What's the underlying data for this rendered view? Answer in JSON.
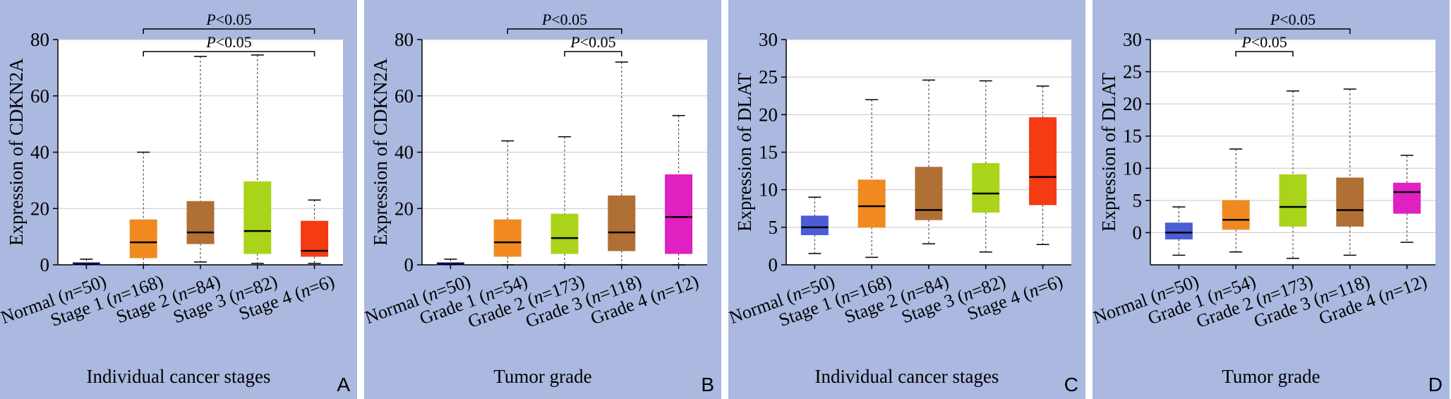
{
  "chart_data": [
    {
      "type": "boxplot",
      "panel_label": "A",
      "xlabel": "Individual cancer stages",
      "ylabel": "Expression of CDKN2A",
      "ylim": [
        0,
        80
      ],
      "yticks": [
        0,
        20,
        40,
        60,
        80
      ],
      "grid": true,
      "boxes": [
        {
          "label": "Normal (n=50)",
          "color": "#4b5cd6",
          "min": 0,
          "q1": 0,
          "median": 0.3,
          "q3": 0.8,
          "max": 2
        },
        {
          "label": "Stage 1 (n=168)",
          "color": "#f08a20",
          "min": 0,
          "q1": 2.5,
          "median": 8,
          "q3": 16,
          "max": 40
        },
        {
          "label": "Stage 2 (n=84)",
          "color": "#b06f35",
          "min": 1,
          "q1": 7.5,
          "median": 11.5,
          "q3": 22.5,
          "max": 74
        },
        {
          "label": "Stage 3 (n=82)",
          "color": "#a9d41a",
          "min": 0.5,
          "q1": 4,
          "median": 12,
          "q3": 29.5,
          "max": 74.5
        },
        {
          "label": "Stage 4 (n=6)",
          "color": "#f43b13",
          "min": 0.5,
          "q1": 3,
          "median": 5,
          "q3": 15.5,
          "max": 23
        }
      ],
      "annotations": [
        {
          "text": "P<0.05",
          "from": 1,
          "to": 4,
          "level": 2
        },
        {
          "text": "P<0.05",
          "from": 1,
          "to": 4,
          "level": 1
        }
      ]
    },
    {
      "type": "boxplot",
      "panel_label": "B",
      "xlabel": "Tumor grade",
      "ylabel": "Expression of CDKN2A",
      "ylim": [
        0,
        80
      ],
      "yticks": [
        0,
        20,
        40,
        60,
        80
      ],
      "grid": true,
      "boxes": [
        {
          "label": "Normal (n=50)",
          "color": "#4b5cd6",
          "min": 0,
          "q1": 0,
          "median": 0.3,
          "q3": 0.8,
          "max": 2
        },
        {
          "label": "Grade 1 (n=54)",
          "color": "#f08a20",
          "min": 0,
          "q1": 3,
          "median": 8,
          "q3": 16,
          "max": 44
        },
        {
          "label": "Grade 2 (n=173)",
          "color": "#a9d41a",
          "min": 0,
          "q1": 4,
          "median": 9.5,
          "q3": 18,
          "max": 45.5
        },
        {
          "label": "Grade 3 (n=118)",
          "color": "#b06f35",
          "min": 0,
          "q1": 5,
          "median": 11.5,
          "q3": 24.5,
          "max": 72
        },
        {
          "label": "Grade 4 (n=12)",
          "color": "#e020c0",
          "min": 0,
          "q1": 4,
          "median": 17,
          "q3": 32,
          "max": 53
        }
      ],
      "annotations": [
        {
          "text": "P<0.05",
          "from": 1,
          "to": 3,
          "level": 2
        },
        {
          "text": "P<0.05",
          "from": 2,
          "to": 3,
          "level": 1
        }
      ]
    },
    {
      "type": "boxplot",
      "panel_label": "C",
      "xlabel": "Individual cancer stages",
      "ylabel": "Expression of DLAT",
      "ylim": [
        0,
        30
      ],
      "yticks": [
        0,
        5,
        10,
        15,
        20,
        25,
        30
      ],
      "grid": true,
      "boxes": [
        {
          "label": "Normal (n=50)",
          "color": "#4b5cd6",
          "min": 1.5,
          "q1": 4,
          "median": 5,
          "q3": 6.5,
          "max": 9
        },
        {
          "label": "Stage 1 (n=168)",
          "color": "#f08a20",
          "min": 1,
          "q1": 5,
          "median": 7.8,
          "q3": 11.3,
          "max": 22
        },
        {
          "label": "Stage 2 (n=84)",
          "color": "#b06f35",
          "min": 2.8,
          "q1": 6,
          "median": 7.3,
          "q3": 13,
          "max": 24.6
        },
        {
          "label": "Stage 3 (n=82)",
          "color": "#a9d41a",
          "min": 1.7,
          "q1": 7,
          "median": 9.5,
          "q3": 13.5,
          "max": 24.5
        },
        {
          "label": "Stage 4 (n=6)",
          "color": "#f43b13",
          "min": 2.7,
          "q1": 8,
          "median": 11.7,
          "q3": 19.6,
          "max": 23.8
        }
      ],
      "annotations": []
    },
    {
      "type": "boxplot",
      "panel_label": "D",
      "xlabel": "Tumor grade",
      "ylabel": "Expression of DLAT",
      "ylim": [
        -5,
        30
      ],
      "yticks": [
        0,
        5,
        10,
        15,
        20,
        25,
        30
      ],
      "grid": true,
      "boxes": [
        {
          "label": "Normal (n=50)",
          "color": "#4b5cd6",
          "min": -3.5,
          "q1": -1,
          "median": 0,
          "q3": 1.5,
          "max": 4
        },
        {
          "label": "Grade 1 (n=54)",
          "color": "#f08a20",
          "min": -3,
          "q1": 0.5,
          "median": 2,
          "q3": 5,
          "max": 13
        },
        {
          "label": "Grade 2 (n=173)",
          "color": "#a9d41a",
          "min": -4,
          "q1": 1,
          "median": 4,
          "q3": 9,
          "max": 22
        },
        {
          "label": "Grade 3 (n=118)",
          "color": "#b06f35",
          "min": -3.5,
          "q1": 1,
          "median": 3.5,
          "q3": 8.5,
          "max": 22.3
        },
        {
          "label": "Grade 4 (n=12)",
          "color": "#e020c0",
          "min": -1.5,
          "q1": 3,
          "median": 6.3,
          "q3": 7.7,
          "max": 12
        }
      ],
      "annotations": [
        {
          "text": "P<0.05",
          "from": 1,
          "to": 3,
          "level": 2
        },
        {
          "text": "P<0.05",
          "from": 1,
          "to": 2,
          "level": 1
        }
      ]
    }
  ]
}
